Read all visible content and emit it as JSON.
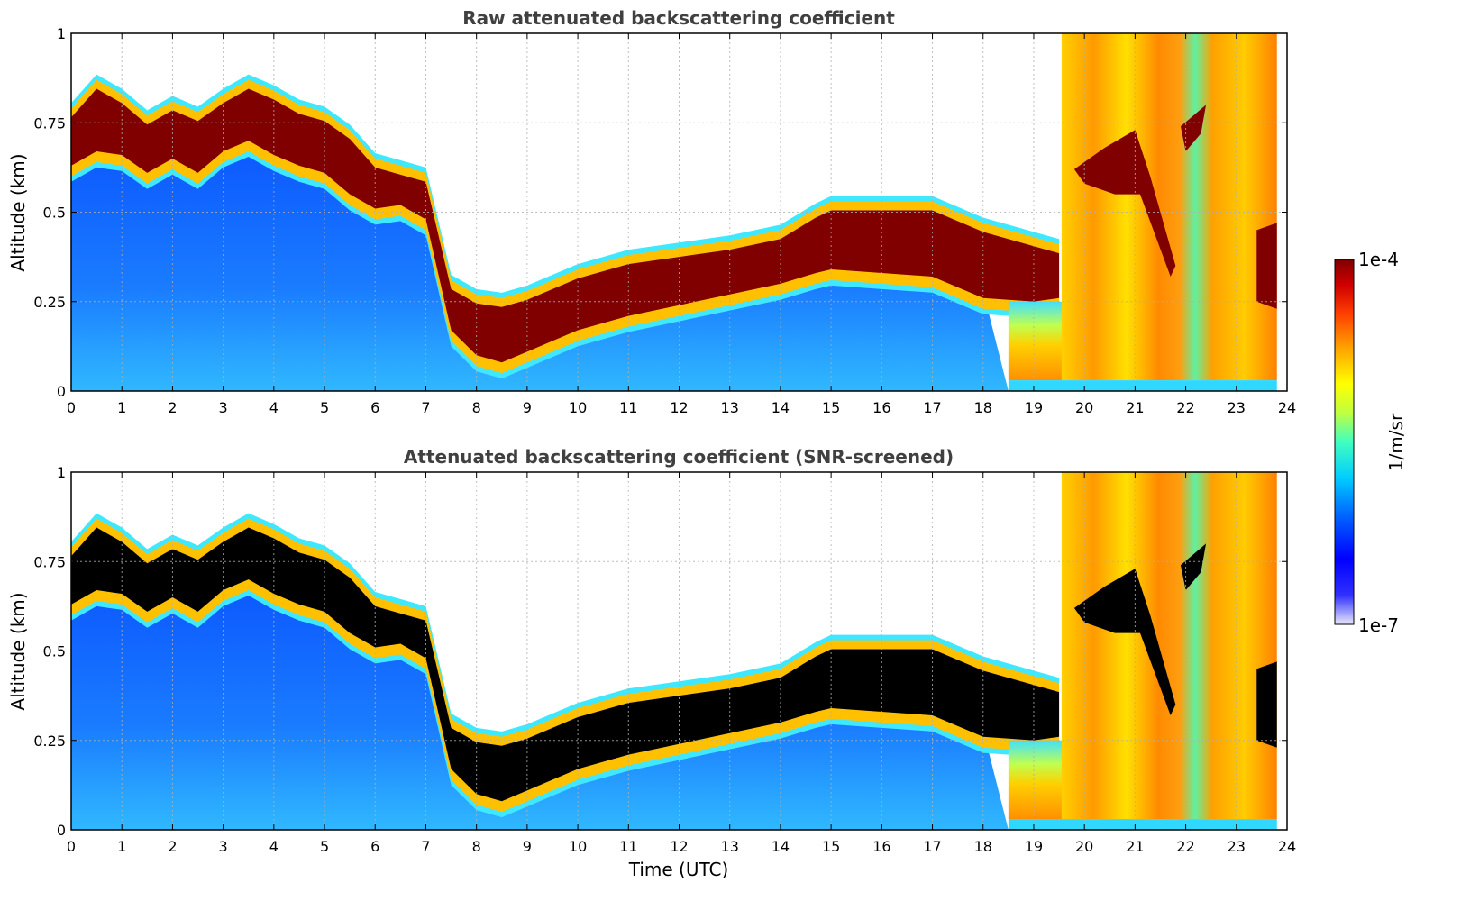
{
  "chart_data": [
    {
      "type": "heatmap",
      "title": "Raw attenuated backscattering coefficient",
      "ylabel": "Altitude (km)",
      "xlabel": "",
      "xlim": [
        0,
        24
      ],
      "ylim": [
        0,
        1
      ],
      "x_ticks": [
        "0",
        "1",
        "2",
        "3",
        "4",
        "5",
        "6",
        "7",
        "8",
        "9",
        "10",
        "11",
        "12",
        "13",
        "14",
        "15",
        "16",
        "17",
        "18",
        "19",
        "20",
        "21",
        "22",
        "23",
        "24"
      ],
      "y_ticks": [
        "0",
        "0.25",
        "0.5",
        "0.75",
        "1"
      ],
      "grid": true,
      "strong_layer_color": "#800000",
      "layer_profile": {
        "time_utc": [
          0,
          0.5,
          1,
          1.5,
          2,
          2.5,
          3,
          3.5,
          4,
          4.5,
          5,
          5.5,
          6,
          6.5,
          7,
          7.5,
          8,
          8.5,
          9,
          10,
          11,
          12,
          13,
          14,
          14.7,
          15,
          16,
          17,
          18,
          19,
          19.5
        ],
        "layer_top_km": [
          0.78,
          0.86,
          0.82,
          0.76,
          0.8,
          0.77,
          0.82,
          0.86,
          0.83,
          0.79,
          0.77,
          0.72,
          0.64,
          0.62,
          0.6,
          0.3,
          0.26,
          0.25,
          0.27,
          0.33,
          0.37,
          0.39,
          0.41,
          0.44,
          0.5,
          0.52,
          0.52,
          0.52,
          0.46,
          0.42,
          0.4
        ],
        "layer_bottom_km": [
          0.6,
          0.64,
          0.63,
          0.58,
          0.62,
          0.58,
          0.64,
          0.67,
          0.63,
          0.6,
          0.58,
          0.52,
          0.48,
          0.49,
          0.45,
          0.14,
          0.07,
          0.05,
          0.08,
          0.14,
          0.18,
          0.21,
          0.24,
          0.27,
          0.3,
          0.31,
          0.3,
          0.29,
          0.23,
          0.22,
          0.23
        ]
      }
    },
    {
      "type": "heatmap",
      "title": "Attenuated backscattering coefficient (SNR-screened)",
      "ylabel": "Altitude (km)",
      "xlabel": "Time (UTC)",
      "xlim": [
        0,
        24
      ],
      "ylim": [
        0,
        1
      ],
      "x_ticks": [
        "0",
        "1",
        "2",
        "3",
        "4",
        "5",
        "6",
        "7",
        "8",
        "9",
        "10",
        "11",
        "12",
        "13",
        "14",
        "15",
        "16",
        "17",
        "18",
        "19",
        "20",
        "21",
        "22",
        "23",
        "24"
      ],
      "y_ticks": [
        "0",
        "0.25",
        "0.5",
        "0.75",
        "1"
      ],
      "grid": true,
      "strong_layer_color": "#000000"
    }
  ],
  "colorbar": {
    "label": "1/m/sr",
    "max_label": "1e-4",
    "min_label": "1e-7",
    "scale": "log",
    "colormap": [
      "#e8e8f8",
      "#3030ff",
      "#0000ff",
      "#0066ff",
      "#00ccff",
      "#40ffc0",
      "#c0ff40",
      "#ffff00",
      "#ffa000",
      "#ff4000",
      "#d00000",
      "#800000"
    ]
  }
}
